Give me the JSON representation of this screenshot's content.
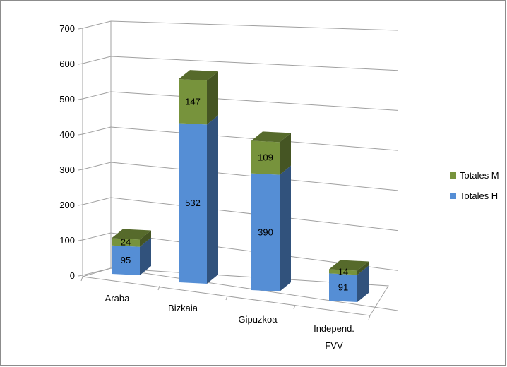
{
  "chart_data": {
    "type": "bar",
    "stacked": true,
    "perspective_3d": true,
    "categories": [
      "Araba",
      "Bizkaia",
      "Gipuzkoa",
      "Independ. FVV"
    ],
    "category_lines": [
      [
        "Araba"
      ],
      [
        "Bizkaia"
      ],
      [
        "Gipuzkoa"
      ],
      [
        "Independ.",
        "FVV"
      ]
    ],
    "series": [
      {
        "name": "Totales H",
        "values": [
          95,
          532,
          390,
          91
        ],
        "color": "#558ed5"
      },
      {
        "name": "Totales M",
        "values": [
          24,
          147,
          109,
          14
        ],
        "color": "#77933c"
      }
    ],
    "y_ticks": [
      0,
      100,
      200,
      300,
      400,
      500,
      600,
      700
    ],
    "ylim": [
      0,
      700
    ],
    "grid": true,
    "legend_position": "right",
    "legend_order": [
      "Totales M",
      "Totales H"
    ]
  }
}
